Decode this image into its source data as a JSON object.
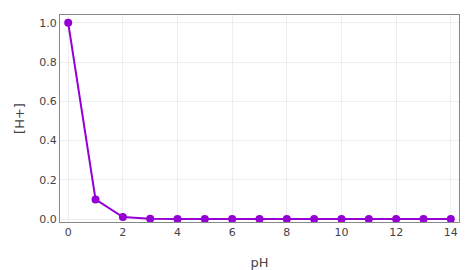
{
  "chart_data": {
    "type": "line",
    "xlabel": "pH",
    "ylabel": "[H+]",
    "x": [
      0,
      1,
      2,
      3,
      4,
      5,
      6,
      7,
      8,
      9,
      10,
      11,
      12,
      13,
      14
    ],
    "values": [
      1.0,
      0.1,
      0.01,
      0.001,
      0.0001,
      1e-05,
      1e-06,
      1e-07,
      1e-08,
      1e-09,
      1e-10,
      1e-11,
      1e-12,
      1e-13,
      1e-14
    ],
    "color": "#9400d3",
    "marker": "circle",
    "xlim": [
      -0.3,
      14.3
    ],
    "ylim": [
      -0.015,
      1.04
    ],
    "xticks": [
      0,
      2,
      4,
      6,
      8,
      10,
      12,
      14
    ],
    "yticks": [
      {
        "value": 0.0,
        "label": "0.0"
      },
      0.2,
      0.4,
      0.6,
      0.8,
      {
        "value": 1.0,
        "label": "1.0"
      }
    ],
    "grid": true
  }
}
